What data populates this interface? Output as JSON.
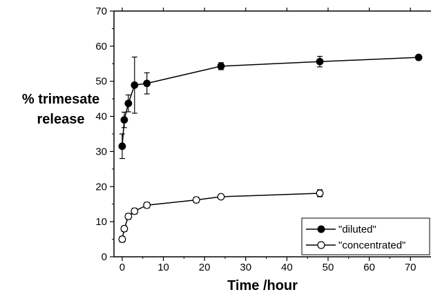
{
  "chart_data": {
    "type": "scatter",
    "xlabel": "Time /hour",
    "ylabel_line1": "% trimesate",
    "ylabel_line2": "release",
    "xlim": [
      -2,
      75
    ],
    "ylim": [
      0,
      70
    ],
    "x_ticks": [
      0,
      10,
      20,
      30,
      40,
      50,
      60,
      70
    ],
    "y_ticks": [
      0,
      10,
      20,
      30,
      40,
      50,
      60,
      70
    ],
    "grid": false,
    "legend_position": "bottom-right",
    "series": [
      {
        "name": "\"diluted\"",
        "marker": "filled-circle",
        "color": "#000000",
        "x": [
          0,
          0.5,
          1.5,
          3,
          6,
          24,
          48,
          72
        ],
        "y": [
          31.5,
          39,
          43.7,
          48.9,
          49.4,
          54.3,
          55.6,
          56.8
        ],
        "err": [
          3.5,
          2.2,
          2.4,
          8.0,
          3.0,
          1.0,
          1.5,
          0.5
        ]
      },
      {
        "name": "\"concentrated\"",
        "marker": "open-circle",
        "color": "#000000",
        "x": [
          0,
          0.5,
          1.5,
          3,
          6,
          18,
          24,
          48
        ],
        "y": [
          5.0,
          8.0,
          11.5,
          13.0,
          14.7,
          16.2,
          17.1,
          18.1
        ],
        "err": [
          0.8,
          0.8,
          0.8,
          0.8,
          0.8,
          0.8,
          0.6,
          1.0
        ]
      }
    ]
  }
}
